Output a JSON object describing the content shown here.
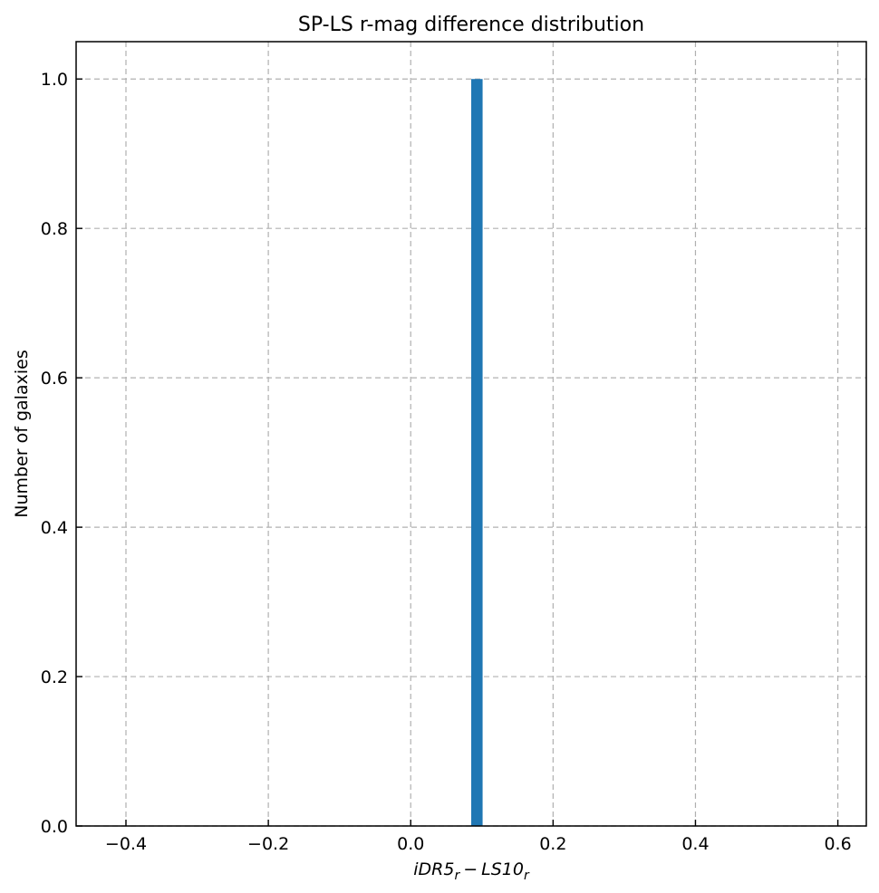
{
  "chart_data": {
    "type": "bar",
    "title": "SP-LS r-mag difference distribution",
    "ylabel": "Number of galaxies",
    "xlabel_parts": {
      "a_base": "iDR5",
      "a_sub": "r",
      "minus": "−",
      "b_base": "LS10",
      "b_sub": "r"
    },
    "xlim": [
      -0.47,
      0.64
    ],
    "ylim": [
      0,
      1.05
    ],
    "xticks": [
      -0.4,
      -0.2,
      0.0,
      0.2,
      0.4,
      0.6
    ],
    "xtick_labels": [
      "−0.4",
      "−0.2",
      "0.0",
      "0.2",
      "0.4",
      "0.6"
    ],
    "yticks": [
      0.0,
      0.2,
      0.4,
      0.6,
      0.8,
      1.0
    ],
    "ytick_labels": [
      "0.0",
      "0.2",
      "0.4",
      "0.6",
      "0.8",
      "1.0"
    ],
    "grid": true,
    "bars": [
      {
        "x_left": 0.085,
        "x_right": 0.101,
        "value": 1.0
      }
    ],
    "bar_color": "#1f77b4",
    "grid_color": "#b0b0b0"
  }
}
